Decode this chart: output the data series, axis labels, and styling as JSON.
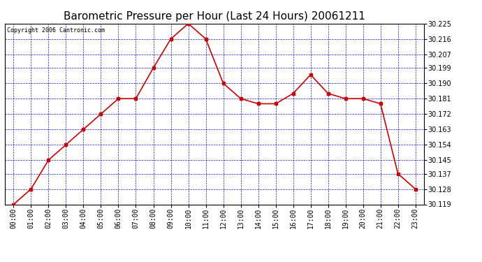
{
  "title": "Barometric Pressure per Hour (Last 24 Hours) 20061211",
  "copyright": "Copyright 2006 Cantronic.com",
  "hours": [
    "00:00",
    "01:00",
    "02:00",
    "03:00",
    "04:00",
    "05:00",
    "06:00",
    "07:00",
    "08:00",
    "09:00",
    "10:00",
    "11:00",
    "12:00",
    "13:00",
    "14:00",
    "15:00",
    "16:00",
    "17:00",
    "18:00",
    "19:00",
    "20:00",
    "21:00",
    "22:00",
    "23:00"
  ],
  "values": [
    30.119,
    30.128,
    30.145,
    30.154,
    30.163,
    30.172,
    30.181,
    30.181,
    30.199,
    30.216,
    30.225,
    30.216,
    30.19,
    30.181,
    30.178,
    30.178,
    30.184,
    30.195,
    30.184,
    30.181,
    30.181,
    30.178,
    30.137,
    30.128
  ],
  "yticks": [
    30.119,
    30.128,
    30.137,
    30.145,
    30.154,
    30.163,
    30.172,
    30.181,
    30.19,
    30.199,
    30.207,
    30.216,
    30.225
  ],
  "ylim": [
    30.119,
    30.225
  ],
  "line_color": "#cc0000",
  "marker_color": "#cc0000",
  "bg_color": "#ffffff",
  "plot_bg_color": "#ffffff",
  "grid_color": "#0000bb",
  "title_color": "#000000",
  "tick_label_color": "#000000",
  "title_fontsize": 11,
  "copyright_fontsize": 6,
  "tick_fontsize": 7,
  "marker_size": 3,
  "line_width": 1.2
}
